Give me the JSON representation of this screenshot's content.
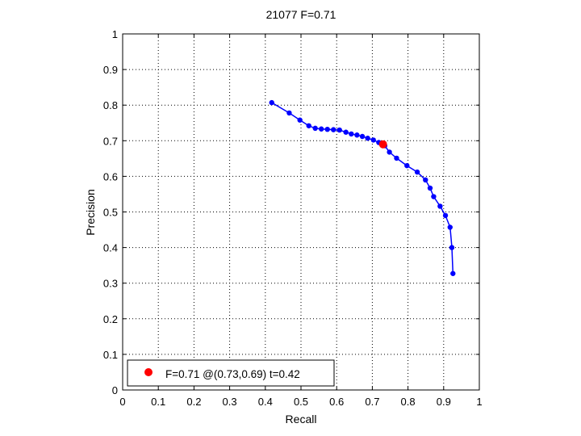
{
  "chart_data": {
    "type": "line",
    "title": "21077 F=0.71",
    "xlabel": "Recall",
    "ylabel": "Precision",
    "xlim": [
      0,
      1
    ],
    "ylim": [
      0,
      1
    ],
    "xticks": [
      "0",
      "0.1",
      "0.2",
      "0.3",
      "0.4",
      "0.5",
      "0.6",
      "0.7",
      "0.8",
      "0.9",
      "1"
    ],
    "yticks": [
      "0",
      "0.1",
      "0.2",
      "0.3",
      "0.4",
      "0.5",
      "0.6",
      "0.7",
      "0.8",
      "0.9",
      "1"
    ],
    "grid": true,
    "grid_style": "dotted",
    "series": [
      {
        "color": "#0000ff",
        "marker": "circle",
        "points": [
          [
            0.418,
            0.807
          ],
          [
            0.467,
            0.778
          ],
          [
            0.497,
            0.758
          ],
          [
            0.522,
            0.742
          ],
          [
            0.54,
            0.735
          ],
          [
            0.557,
            0.733
          ],
          [
            0.574,
            0.732
          ],
          [
            0.591,
            0.731
          ],
          [
            0.608,
            0.73
          ],
          [
            0.626,
            0.724
          ],
          [
            0.641,
            0.719
          ],
          [
            0.657,
            0.716
          ],
          [
            0.672,
            0.712
          ],
          [
            0.687,
            0.707
          ],
          [
            0.703,
            0.702
          ],
          [
            0.718,
            0.695
          ],
          [
            0.735,
            0.686
          ],
          [
            0.748,
            0.668
          ],
          [
            0.768,
            0.651
          ],
          [
            0.797,
            0.63
          ],
          [
            0.826,
            0.612
          ],
          [
            0.849,
            0.59
          ],
          [
            0.862,
            0.567
          ],
          [
            0.872,
            0.543
          ],
          [
            0.89,
            0.516
          ],
          [
            0.905,
            0.49
          ],
          [
            0.918,
            0.457
          ],
          [
            0.923,
            0.4
          ],
          [
            0.926,
            0.327
          ]
        ]
      }
    ],
    "highlight": {
      "x": 0.73,
      "y": 0.69,
      "color": "#ff0000"
    },
    "legend": {
      "position": "bottom-left",
      "entries": [
        {
          "label": "F=0.71 @(0.73,0.69) t=0.42",
          "color": "#ff0000"
        }
      ]
    }
  }
}
